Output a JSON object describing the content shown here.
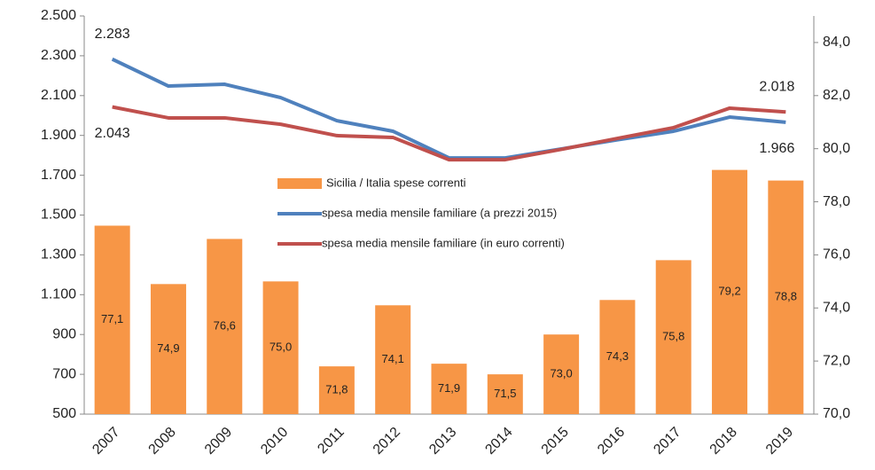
{
  "chart_data": {
    "type": "bar_line",
    "categories": [
      "2007",
      "2008",
      "2009",
      "2010",
      "2011",
      "2012",
      "2013",
      "2014",
      "2015",
      "2016",
      "2017",
      "2018",
      "2019"
    ],
    "series": [
      {
        "name": "Sicilia / Italia spese correnti",
        "type": "bar",
        "axis": "y2",
        "color": "#f79646",
        "values": [
          77.1,
          74.9,
          76.6,
          75.0,
          71.8,
          74.1,
          71.9,
          71.5,
          73.0,
          74.3,
          75.8,
          79.2,
          78.8
        ],
        "value_labels": [
          "77,1",
          "74,9",
          "76,6",
          "75,0",
          "71,8",
          "74,1",
          "71,9",
          "71,5",
          "73,0",
          "74,3",
          "75,8",
          "79,2",
          "78,8"
        ]
      },
      {
        "name": "spesa media mensile familiare (a prezzi 2015)",
        "type": "line",
        "axis": "y",
        "color": "#4f81bd",
        "values": [
          2283,
          2148,
          2157,
          2090,
          1974,
          1921,
          1787,
          1787,
          1832,
          1878,
          1921,
          1992,
          1966
        ],
        "value_labels": [
          "2.283",
          null,
          null,
          null,
          null,
          null,
          null,
          null,
          null,
          null,
          null,
          null,
          "1.966"
        ]
      },
      {
        "name": "spesa media mensile familiare (in euro correnti)",
        "type": "line",
        "axis": "y",
        "color": "#c0504d",
        "values": [
          2043,
          1988,
          1988,
          1956,
          1899,
          1890,
          1778,
          1778,
          1830,
          1885,
          1939,
          2037,
          2018
        ],
        "value_labels": [
          "2.043",
          null,
          null,
          null,
          null,
          null,
          null,
          null,
          null,
          null,
          null,
          null,
          "2.018"
        ]
      }
    ],
    "ylim": [
      500,
      2500
    ],
    "yticks": [
      {
        "value": 500,
        "label": "500"
      },
      {
        "value": 700,
        "label": "700"
      },
      {
        "value": 900,
        "label": "900"
      },
      {
        "value": 1100,
        "label": "1.100"
      },
      {
        "value": 1300,
        "label": "1.300"
      },
      {
        "value": 1500,
        "label": "1.500"
      },
      {
        "value": 1700,
        "label": "1.700"
      },
      {
        "value": 1900,
        "label": "1.900"
      },
      {
        "value": 2100,
        "label": "2.100"
      },
      {
        "value": 2300,
        "label": "2.300"
      },
      {
        "value": 2500,
        "label": "2.500"
      }
    ],
    "y2lim": [
      70,
      85
    ],
    "y2ticks": [
      {
        "value": 70,
        "label": "70,0"
      },
      {
        "value": 72,
        "label": "72,0"
      },
      {
        "value": 74,
        "label": "74,0"
      },
      {
        "value": 76,
        "label": "76,0"
      },
      {
        "value": 78,
        "label": "78,0"
      },
      {
        "value": 80,
        "label": "80,0"
      },
      {
        "value": 82,
        "label": "82,0"
      },
      {
        "value": 84,
        "label": "84,0"
      }
    ],
    "grid": false
  }
}
